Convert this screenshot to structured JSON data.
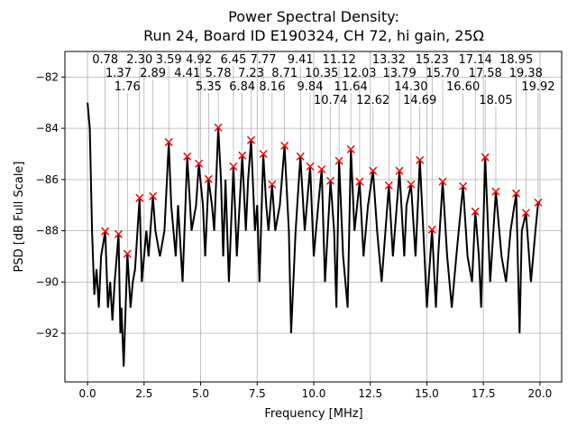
{
  "chart_data": {
    "type": "line",
    "title": "Power Spectral Density:",
    "subtitle": "Run 24, Board ID E190324, CH 72, hi gain, 25Ω",
    "xlabel": "Frequency [MHz]",
    "ylabel": "PSD [dB Full Scale]",
    "xlim": [
      -1.0,
      20.96
    ],
    "ylim": [
      -93.9,
      -81.0
    ],
    "xticks": [
      0.0,
      2.5,
      5.0,
      7.5,
      10.0,
      12.5,
      15.0,
      17.5,
      20.0
    ],
    "xtick_labels": [
      "0.0",
      "2.5",
      "5.0",
      "7.5",
      "10.0",
      "12.5",
      "15.0",
      "17.5",
      "20.0"
    ],
    "yticks": [
      -82,
      -84,
      -86,
      -88,
      -90,
      -92
    ],
    "ytick_labels": [
      "−82",
      "−84",
      "−86",
      "−88",
      "−90",
      "−92"
    ],
    "grid": true,
    "line_color": "#000000",
    "marker_color": "#ff0000",
    "series": [
      {
        "x": [
          0,
          0.1,
          0.2,
          0.3,
          0.4,
          0.5,
          0.6,
          0.78,
          0.9,
          1.0,
          1.1,
          1.2,
          1.37,
          1.45,
          1.5,
          1.6,
          1.76,
          1.9,
          2.0,
          2.1,
          2.3,
          2.4,
          2.6,
          2.7,
          2.89,
          3.0,
          3.2,
          3.4,
          3.59,
          3.7,
          3.9,
          4.0,
          4.2,
          4.41,
          4.6,
          4.8,
          4.92,
          5.1,
          5.2,
          5.35,
          5.5,
          5.6,
          5.78,
          5.9,
          6.0,
          6.1,
          6.25,
          6.45,
          6.6,
          6.84,
          7.0,
          7.1,
          7.23,
          7.4,
          7.5,
          7.6,
          7.77,
          7.9,
          8.0,
          8.16,
          8.3,
          8.5,
          8.71,
          8.9,
          9.0,
          9.2,
          9.41,
          9.6,
          9.84,
          10.0,
          10.2,
          10.35,
          10.5,
          10.74,
          10.9,
          11.0,
          11.12,
          11.3,
          11.5,
          11.64,
          11.8,
          12.03,
          12.2,
          12.4,
          12.62,
          12.8,
          13.0,
          13.32,
          13.5,
          13.79,
          14.0,
          14.1,
          14.3,
          14.5,
          14.69,
          14.9,
          15.0,
          15.23,
          15.4,
          15.5,
          15.7,
          15.9,
          16.1,
          16.3,
          16.6,
          16.8,
          17.0,
          17.14,
          17.3,
          17.4,
          17.58,
          17.8,
          18.05,
          18.3,
          18.5,
          18.7,
          18.95,
          19.1,
          19.2,
          19.38,
          19.6,
          19.8,
          19.92,
          20.0
        ],
        "y": [
          -83,
          -84,
          -88,
          -90.5,
          -89.5,
          -91,
          -89,
          -88.02,
          -91,
          -90,
          -91.5,
          -90,
          -88.13,
          -92,
          -91,
          -93.3,
          -88.9,
          -91,
          -90,
          -89.5,
          -86.72,
          -90,
          -88,
          -89,
          -86.65,
          -88,
          -89,
          -88,
          -84.54,
          -87,
          -89,
          -87,
          -90,
          -85.1,
          -88,
          -87,
          -85.38,
          -87,
          -89,
          -85.98,
          -87,
          -88,
          -83.97,
          -86,
          -89,
          -86,
          -90,
          -85.49,
          -89,
          -85.06,
          -88,
          -86,
          -84.46,
          -88,
          -87,
          -90,
          -85.0,
          -87,
          -88,
          -86.19,
          -88,
          -87,
          -84.68,
          -88,
          -92,
          -88,
          -85.1,
          -88,
          -85.49,
          -89,
          -87,
          -85.6,
          -90,
          -86.05,
          -88,
          -91,
          -85.27,
          -89,
          -91,
          -84.82,
          -88,
          -86.08,
          -89,
          -87,
          -85.66,
          -88,
          -90,
          -86.23,
          -89,
          -85.66,
          -89,
          -87,
          -86.19,
          -89,
          -85.24,
          -89,
          -91,
          -87.95,
          -91,
          -89,
          -86.08,
          -89,
          -91,
          -89,
          -86.26,
          -89,
          -90,
          -87.25,
          -89,
          -91,
          -85.13,
          -90,
          -86.47,
          -89,
          -90,
          -88,
          -86.54,
          -92,
          -88,
          -87.3,
          -90,
          -88,
          -86.9,
          -86.9
        ]
      }
    ],
    "peaks": [
      {
        "x": 0.78,
        "y": -88.02,
        "label": "0.78"
      },
      {
        "x": 1.37,
        "y": -88.13,
        "label": "1.37"
      },
      {
        "x": 1.76,
        "y": -88.9,
        "label": "1.76"
      },
      {
        "x": 2.3,
        "y": -86.72,
        "label": "2.30"
      },
      {
        "x": 2.89,
        "y": -86.65,
        "label": "2.89"
      },
      {
        "x": 3.59,
        "y": -84.54,
        "label": "3.59"
      },
      {
        "x": 4.41,
        "y": -85.1,
        "label": "4.41"
      },
      {
        "x": 4.92,
        "y": -85.38,
        "label": "4.92"
      },
      {
        "x": 5.35,
        "y": -85.98,
        "label": "5.35"
      },
      {
        "x": 5.78,
        "y": -83.97,
        "label": "5.78"
      },
      {
        "x": 6.45,
        "y": -85.49,
        "label": "6.45"
      },
      {
        "x": 6.84,
        "y": -85.06,
        "label": "6.84"
      },
      {
        "x": 7.23,
        "y": -84.46,
        "label": "7.23"
      },
      {
        "x": 7.77,
        "y": -85.0,
        "label": "7.77"
      },
      {
        "x": 8.16,
        "y": -86.19,
        "label": "8.16"
      },
      {
        "x": 8.71,
        "y": -84.68,
        "label": "8.71"
      },
      {
        "x": 9.41,
        "y": -85.1,
        "label": "9.41"
      },
      {
        "x": 9.84,
        "y": -85.49,
        "label": "9.84"
      },
      {
        "x": 10.35,
        "y": -85.6,
        "label": "10.35"
      },
      {
        "x": 10.74,
        "y": -86.05,
        "label": "10.74"
      },
      {
        "x": 11.12,
        "y": -85.27,
        "label": "11.12"
      },
      {
        "x": 11.64,
        "y": -84.82,
        "label": "11.64"
      },
      {
        "x": 12.03,
        "y": -86.08,
        "label": "12.03"
      },
      {
        "x": 12.62,
        "y": -85.66,
        "label": "12.62"
      },
      {
        "x": 13.32,
        "y": -86.23,
        "label": "13.32"
      },
      {
        "x": 13.79,
        "y": -85.66,
        "label": "13.79"
      },
      {
        "x": 14.3,
        "y": -86.19,
        "label": "14.30"
      },
      {
        "x": 14.69,
        "y": -85.24,
        "label": "14.69"
      },
      {
        "x": 15.23,
        "y": -87.95,
        "label": "15.23"
      },
      {
        "x": 15.7,
        "y": -86.08,
        "label": "15.70"
      },
      {
        "x": 16.6,
        "y": -86.26,
        "label": "16.60"
      },
      {
        "x": 17.14,
        "y": -87.25,
        "label": "17.14"
      },
      {
        "x": 17.58,
        "y": -85.13,
        "label": "17.58"
      },
      {
        "x": 18.05,
        "y": -86.47,
        "label": "18.05"
      },
      {
        "x": 18.95,
        "y": -86.54,
        "label": "18.95"
      },
      {
        "x": 19.38,
        "y": -87.3,
        "label": "19.38"
      },
      {
        "x": 19.92,
        "y": -86.9,
        "label": "19.92"
      }
    ]
  }
}
